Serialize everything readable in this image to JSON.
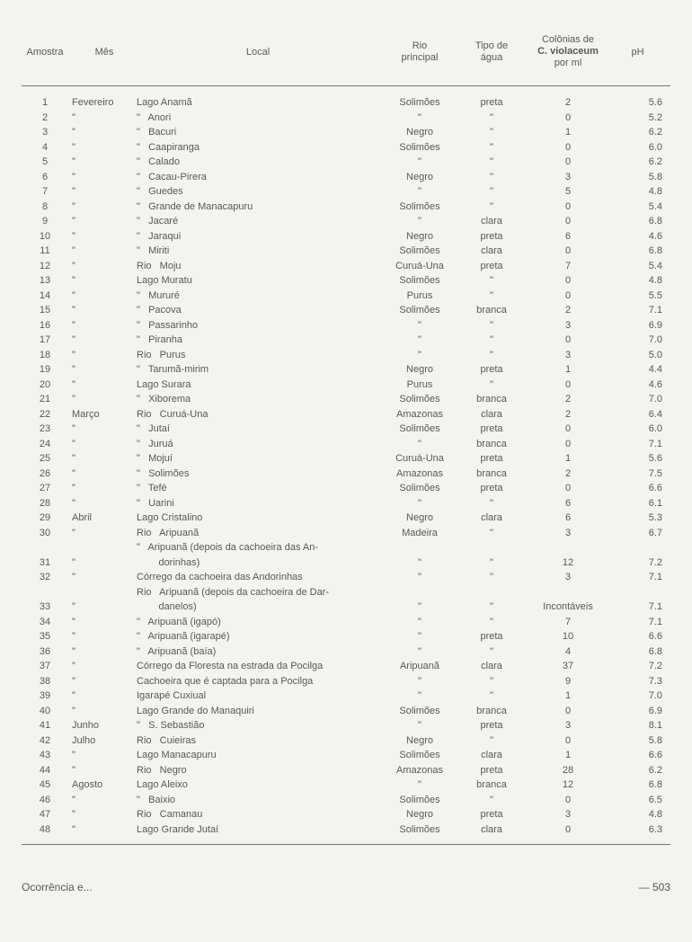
{
  "table": {
    "headers": {
      "amostra": "Amostra",
      "mes": "Mês",
      "local": "Local",
      "rio1": "Rio",
      "rio2": "principal",
      "tipo1": "Tipo de",
      "tipo2": "água",
      "col1": "Colônias de",
      "col2": "C. violaceum",
      "col3": "por ml",
      "ph": "pH"
    },
    "rows": [
      {
        "n": "1",
        "mes": "Fevereiro",
        "local": "Lago Anamã",
        "rio": "Solimões",
        "tipo": "preta",
        "col": "2",
        "ph": "5.6"
      },
      {
        "n": "2",
        "mes": "\"",
        "local": "\"   Anori",
        "rio": "\"",
        "tipo": "\"",
        "col": "0",
        "ph": "5.2"
      },
      {
        "n": "3",
        "mes": "\"",
        "local": "\"   Bacuri",
        "rio": "Negro",
        "tipo": "\"",
        "col": "1",
        "ph": "6.2"
      },
      {
        "n": "4",
        "mes": "\"",
        "local": "\"   Caapiranga",
        "rio": "Solimões",
        "tipo": "\"",
        "col": "0",
        "ph": "6.0"
      },
      {
        "n": "5",
        "mes": "\"",
        "local": "\"   Calado",
        "rio": "\"",
        "tipo": "\"",
        "col": "0",
        "ph": "6.2"
      },
      {
        "n": "6",
        "mes": "\"",
        "local": "\"   Cacau-Pirera",
        "rio": "Negro",
        "tipo": "\"",
        "col": "3",
        "ph": "5.8"
      },
      {
        "n": "7",
        "mes": "\"",
        "local": "\"   Guedes",
        "rio": "\"",
        "tipo": "\"",
        "col": "5",
        "ph": "4.8"
      },
      {
        "n": "8",
        "mes": "\"",
        "local": "\"   Grande de Manacapuru",
        "rio": "Solimões",
        "tipo": "\"",
        "col": "0",
        "ph": "5.4"
      },
      {
        "n": "9",
        "mes": "\"",
        "local": "\"   Jacaré",
        "rio": "\"",
        "tipo": "clara",
        "col": "0",
        "ph": "6.8"
      },
      {
        "n": "10",
        "mes": "\"",
        "local": "\"   Jaraqui",
        "rio": "Negro",
        "tipo": "preta",
        "col": "6",
        "ph": "4.6"
      },
      {
        "n": "11",
        "mes": "\"",
        "local": "\"   Miriti",
        "rio": "Solimões",
        "tipo": "clara",
        "col": "0",
        "ph": "6.8"
      },
      {
        "n": "12",
        "mes": "\"",
        "local": "Rio   Moju",
        "rio": "Curuá-Una",
        "tipo": "preta",
        "col": "7",
        "ph": "5.4"
      },
      {
        "n": "13",
        "mes": "\"",
        "local": "Lago Muratu",
        "rio": "Solimões",
        "tipo": "\"",
        "col": "0",
        "ph": "4.8"
      },
      {
        "n": "14",
        "mes": "\"",
        "local": "\"   Mururé",
        "rio": "Purus",
        "tipo": "\"",
        "col": "0",
        "ph": "5.5"
      },
      {
        "n": "15",
        "mes": "\"",
        "local": "\"   Pacova",
        "rio": "Solimões",
        "tipo": "branca",
        "col": "2",
        "ph": "7.1"
      },
      {
        "n": "16",
        "mes": "\"",
        "local": "\"   Passarinho",
        "rio": "\"",
        "tipo": "\"",
        "col": "3",
        "ph": "6.9"
      },
      {
        "n": "17",
        "mes": "\"",
        "local": "\"   Piranha",
        "rio": "\"",
        "tipo": "\"",
        "col": "0",
        "ph": "7.0"
      },
      {
        "n": "18",
        "mes": "\"",
        "local": "Rio   Purus",
        "rio": "\"",
        "tipo": "\"",
        "col": "3",
        "ph": "5.0"
      },
      {
        "n": "19",
        "mes": "\"",
        "local": "\"   Tarumã-mirim",
        "rio": "Negro",
        "tipo": "preta",
        "col": "1",
        "ph": "4.4"
      },
      {
        "n": "20",
        "mes": "\"",
        "local": "Lago Surara",
        "rio": "Purus",
        "tipo": "\"",
        "col": "0",
        "ph": "4.6"
      },
      {
        "n": "21",
        "mes": "\"",
        "local": "\"   Xiborema",
        "rio": "Solimões",
        "tipo": "branca",
        "col": "2",
        "ph": "7.0"
      },
      {
        "n": "22",
        "mes": "Março",
        "local": "Rio   Curuá-Una",
        "rio": "Amazonas",
        "tipo": "clara",
        "col": "2",
        "ph": "6.4"
      },
      {
        "n": "23",
        "mes": "\"",
        "local": "\"   Jutaí",
        "rio": "Solimões",
        "tipo": "preta",
        "col": "0",
        "ph": "6.0"
      },
      {
        "n": "24",
        "mes": "\"",
        "local": "\"   Juruá",
        "rio": "\"",
        "tipo": "branca",
        "col": "0",
        "ph": "7.1"
      },
      {
        "n": "25",
        "mes": "\"",
        "local": "\"   Mojuí",
        "rio": "Curuá-Una",
        "tipo": "preta",
        "col": "1",
        "ph": "5.6"
      },
      {
        "n": "26",
        "mes": "\"",
        "local": "\"   Solimões",
        "rio": "Amazonas",
        "tipo": "branca",
        "col": "2",
        "ph": "7.5"
      },
      {
        "n": "27",
        "mes": "\"",
        "local": "\"   Tefé",
        "rio": "Solimões",
        "tipo": "preta",
        "col": "0",
        "ph": "6.6"
      },
      {
        "n": "28",
        "mes": "\"",
        "local": "\"   Uarini",
        "rio": "\"",
        "tipo": "\"",
        "col": "6",
        "ph": "6.1"
      },
      {
        "n": "29",
        "mes": "Abril",
        "local": "Lago Cristalino",
        "rio": "Negro",
        "tipo": "clara",
        "col": "6",
        "ph": "5.3"
      },
      {
        "n": "30",
        "mes": "\"",
        "local": "Rio   Aripuanã",
        "rio": "Madeira",
        "tipo": "\"",
        "col": "3",
        "ph": "6.7"
      },
      {
        "n": "",
        "mes": "",
        "local": "\"   Aripuanã (depois da cachoeira das An-",
        "rio": "",
        "tipo": "",
        "col": "",
        "ph": ""
      },
      {
        "n": "31",
        "mes": "\"",
        "local": "        dorinhas)",
        "rio": "\"",
        "tipo": "\"",
        "col": "12",
        "ph": "7.2"
      },
      {
        "n": "32",
        "mes": "\"",
        "local": "Córrego da cachoeira das Andorinhas",
        "rio": "\"",
        "tipo": "\"",
        "col": "3",
        "ph": "7.1"
      },
      {
        "n": "",
        "mes": "",
        "local": "Rio   Aripuanã (depois da cachoeira de Dar-",
        "rio": "",
        "tipo": "",
        "col": "",
        "ph": ""
      },
      {
        "n": "33",
        "mes": "\"",
        "local": "        danelos)",
        "rio": "\"",
        "tipo": "\"",
        "col": "Incontáveis",
        "ph": "7.1"
      },
      {
        "n": "34",
        "mes": "\"",
        "local": "\"   Aripuanã (igapó)",
        "rio": "\"",
        "tipo": "\"",
        "col": "7",
        "ph": "7.1"
      },
      {
        "n": "35",
        "mes": "\"",
        "local": "\"   Aripuanã (igarapé)",
        "rio": "\"",
        "tipo": "preta",
        "col": "10",
        "ph": "6.6"
      },
      {
        "n": "36",
        "mes": "\"",
        "local": "\"   Aripuanã (baía)",
        "rio": "\"",
        "tipo": "\"",
        "col": "4",
        "ph": "6.8"
      },
      {
        "n": "37",
        "mes": "\"",
        "local": "Córrego da Floresta na estrada da Pocilga",
        "rio": "Aripuanã",
        "tipo": "clara",
        "col": "37",
        "ph": "7.2"
      },
      {
        "n": "38",
        "mes": "\"",
        "local": "Cachoeira que é captada para a Pocilga",
        "rio": "\"",
        "tipo": "\"",
        "col": "9",
        "ph": "7.3"
      },
      {
        "n": "39",
        "mes": "\"",
        "local": "Igarapé Cuxiual",
        "rio": "\"",
        "tipo": "\"",
        "col": "1",
        "ph": "7.0"
      },
      {
        "n": "40",
        "mes": "\"",
        "local": "Lago Grande do Manaquiri",
        "rio": "Solimões",
        "tipo": "branca",
        "col": "0",
        "ph": "6.9"
      },
      {
        "n": "41",
        "mes": "Junho",
        "local": "\"   S. Sebastião",
        "rio": "\"",
        "tipo": "preta",
        "col": "3",
        "ph": "8.1"
      },
      {
        "n": "42",
        "mes": "Julho",
        "local": "Rio   Cuieiras",
        "rio": "Negro",
        "tipo": "\"",
        "col": "0",
        "ph": "5.8"
      },
      {
        "n": "43",
        "mes": "\"",
        "local": "Lago Manacapuru",
        "rio": "Solimões",
        "tipo": "clara",
        "col": "1",
        "ph": "6.6"
      },
      {
        "n": "44",
        "mes": "\"",
        "local": "Rio   Negro",
        "rio": "Amazonas",
        "tipo": "preta",
        "col": "28",
        "ph": "6.2"
      },
      {
        "n": "45",
        "mes": "Agosto",
        "local": "Lago Aleixo",
        "rio": "\"",
        "tipo": "branca",
        "col": "12",
        "ph": "6.8"
      },
      {
        "n": "46",
        "mes": "\"",
        "local": "\"   Baixio",
        "rio": "Solimões",
        "tipo": "\"",
        "col": "0",
        "ph": "6.5"
      },
      {
        "n": "47",
        "mes": "\"",
        "local": "Rio   Camanau",
        "rio": "Negro",
        "tipo": "preta",
        "col": "3",
        "ph": "4.8"
      },
      {
        "n": "48",
        "mes": "\"",
        "local": "Lago Grande Jutaí",
        "rio": "Solimões",
        "tipo": "clara",
        "col": "0",
        "ph": "6.3"
      }
    ]
  },
  "footer": {
    "left": "Ocorrência e...",
    "right": "— 503"
  },
  "style": {
    "background": "#f5f3f0",
    "text_color": "#5a5854",
    "rule_color": "#777777",
    "font_size_body": 11,
    "font_size_footer": 12,
    "line_height": 16.5,
    "col_widths": {
      "amostra": 52,
      "mes": 72,
      "local": 270,
      "rio": 90,
      "tipo": 70,
      "col": 100,
      "ph": 55
    }
  }
}
